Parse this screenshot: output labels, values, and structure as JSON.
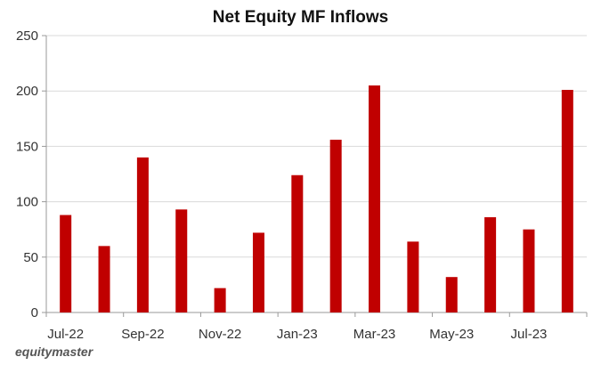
{
  "chart_data": {
    "type": "bar",
    "title": "Net Equity MF Inflows",
    "categories": [
      "Jul-22",
      "Aug-22",
      "Sep-22",
      "Oct-22",
      "Nov-22",
      "Dec-22",
      "Jan-23",
      "Feb-23",
      "Mar-23",
      "Apr-23",
      "May-23",
      "Jun-23",
      "Jul-23",
      "Aug-23"
    ],
    "tick_labels": [
      "Jul-22",
      "Sep-22",
      "Nov-22",
      "Jan-23",
      "Mar-23",
      "May-23",
      "Jul-23"
    ],
    "values": [
      88,
      60,
      140,
      93,
      22,
      72,
      124,
      156,
      205,
      64,
      32,
      86,
      75,
      201
    ],
    "ylim": [
      0,
      250
    ],
    "yticks": [
      0,
      50,
      100,
      150,
      200,
      250
    ],
    "xlabel": "",
    "ylabel": "",
    "grid": true,
    "bar_color": "#c00000"
  },
  "branding": {
    "text": "equitymaster"
  }
}
